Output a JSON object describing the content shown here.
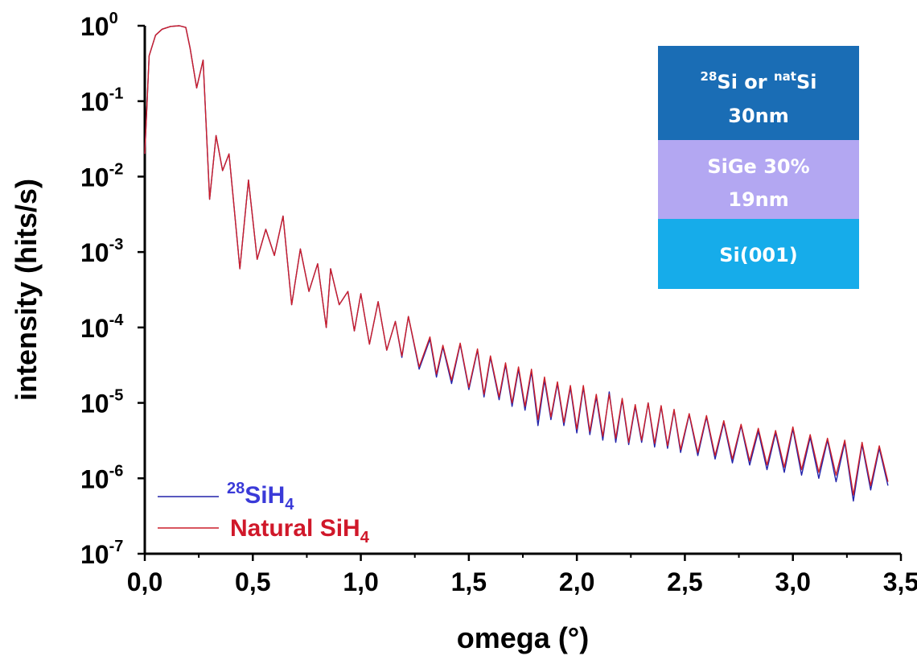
{
  "chart_data": {
    "type": "line",
    "xlabel": "omega (°)",
    "ylabel": "intensity (hits/s)",
    "xlim": [
      0,
      3.5
    ],
    "ylim_log10": [
      -7,
      0
    ],
    "y_scale": "log",
    "x_ticks": [
      {
        "v": 0.0,
        "label": "0,0"
      },
      {
        "v": 0.5,
        "label": "0,5"
      },
      {
        "v": 1.0,
        "label": "1,0"
      },
      {
        "v": 1.5,
        "label": "1,5"
      },
      {
        "v": 2.0,
        "label": "2,0"
      },
      {
        "v": 2.5,
        "label": "2,5"
      },
      {
        "v": 3.0,
        "label": "3,0"
      },
      {
        "v": 3.5,
        "label": "3,5"
      }
    ],
    "y_ticks": [
      {
        "exp": 0,
        "base": "10",
        "sup": "0"
      },
      {
        "exp": -1,
        "base": "10",
        "sup": "-1"
      },
      {
        "exp": -2,
        "base": "10",
        "sup": "-2"
      },
      {
        "exp": -3,
        "base": "10",
        "sup": "-3"
      },
      {
        "exp": -4,
        "base": "10",
        "sup": "-4"
      },
      {
        "exp": -5,
        "base": "10",
        "sup": "-5"
      },
      {
        "exp": -6,
        "base": "10",
        "sup": "-6"
      },
      {
        "exp": -7,
        "base": "10",
        "sup": "-7"
      }
    ],
    "series": [
      {
        "name_prefix_sup": "28",
        "name_main": "SiH",
        "name_sub": "4",
        "color": "#2222aa",
        "label_color": "#3a3ad8",
        "x": [
          0.0,
          0.02,
          0.05,
          0.08,
          0.12,
          0.16,
          0.19,
          0.21,
          0.24,
          0.27,
          0.3,
          0.33,
          0.36,
          0.39,
          0.41,
          0.44,
          0.48,
          0.52,
          0.56,
          0.6,
          0.64,
          0.68,
          0.72,
          0.76,
          0.8,
          0.84,
          0.86,
          0.9,
          0.94,
          0.97,
          1.0,
          1.04,
          1.08,
          1.12,
          1.16,
          1.19,
          1.22,
          1.27,
          1.32,
          1.35,
          1.38,
          1.42,
          1.46,
          1.5,
          1.54,
          1.57,
          1.6,
          1.64,
          1.67,
          1.7,
          1.73,
          1.76,
          1.79,
          1.82,
          1.85,
          1.88,
          1.91,
          1.94,
          1.97,
          2.0,
          2.03,
          2.06,
          2.09,
          2.12,
          2.15,
          2.18,
          2.21,
          2.24,
          2.27,
          2.3,
          2.33,
          2.36,
          2.39,
          2.42,
          2.45,
          2.48,
          2.52,
          2.56,
          2.6,
          2.64,
          2.68,
          2.72,
          2.76,
          2.8,
          2.84,
          2.88,
          2.92,
          2.96,
          3.0,
          3.04,
          3.08,
          3.12,
          3.16,
          3.2,
          3.24,
          3.28,
          3.32,
          3.36,
          3.4,
          3.44
        ],
        "y": [
          0.02,
          0.4,
          0.75,
          0.9,
          0.98,
          1.0,
          0.95,
          0.5,
          0.15,
          0.35,
          0.005,
          0.035,
          0.012,
          0.02,
          0.005,
          0.0006,
          0.009,
          0.0008,
          0.002,
          0.0009,
          0.003,
          0.0002,
          0.0011,
          0.0003,
          0.0007,
          0.0001,
          0.0006,
          0.0002,
          0.0003,
          9e-05,
          0.00028,
          6e-05,
          0.00022,
          5e-05,
          0.00012,
          4e-05,
          0.00014,
          2.8e-05,
          7e-05,
          2.2e-05,
          5.5e-05,
          1.8e-05,
          6e-05,
          1.5e-05,
          5e-05,
          1.2e-05,
          4e-05,
          1.1e-05,
          3.2e-05,
          9e-06,
          2.8e-05,
          8e-06,
          2.6e-05,
          5e-06,
          2e-05,
          6e-06,
          1.8e-05,
          5e-06,
          1.6e-05,
          4e-06,
          1.6e-05,
          3.8e-06,
          1.2e-05,
          3.2e-06,
          1.4e-05,
          3e-06,
          1.1e-05,
          2.8e-06,
          9e-06,
          3e-06,
          1e-05,
          2.6e-06,
          9e-06,
          2.5e-06,
          8e-06,
          2.2e-06,
          7e-06,
          2e-06,
          6.5e-06,
          1.8e-06,
          5.5e-06,
          1.6e-06,
          5e-06,
          1.5e-06,
          4.2e-06,
          1.3e-06,
          4e-06,
          1.2e-06,
          4.5e-06,
          1.1e-06,
          3.5e-06,
          1e-06,
          3.2e-06,
          9e-07,
          3e-06,
          5e-07,
          2.8e-06,
          7e-07,
          2.5e-06,
          8e-07
        ]
      },
      {
        "name_main": "Natural SiH",
        "name_sub": "4",
        "color": "#cc1f2a",
        "label_color": "#d0182a",
        "x": [
          0.0,
          0.02,
          0.05,
          0.08,
          0.12,
          0.16,
          0.19,
          0.21,
          0.24,
          0.27,
          0.3,
          0.33,
          0.36,
          0.39,
          0.41,
          0.44,
          0.48,
          0.52,
          0.56,
          0.6,
          0.64,
          0.68,
          0.72,
          0.76,
          0.8,
          0.84,
          0.86,
          0.9,
          0.94,
          0.97,
          1.0,
          1.04,
          1.08,
          1.12,
          1.16,
          1.19,
          1.22,
          1.27,
          1.32,
          1.35,
          1.38,
          1.42,
          1.46,
          1.5,
          1.54,
          1.57,
          1.6,
          1.64,
          1.67,
          1.7,
          1.73,
          1.76,
          1.79,
          1.82,
          1.85,
          1.88,
          1.91,
          1.94,
          1.97,
          2.0,
          2.03,
          2.06,
          2.09,
          2.12,
          2.15,
          2.18,
          2.21,
          2.24,
          2.27,
          2.3,
          2.33,
          2.36,
          2.39,
          2.42,
          2.45,
          2.48,
          2.52,
          2.56,
          2.6,
          2.64,
          2.68,
          2.72,
          2.76,
          2.8,
          2.84,
          2.88,
          2.92,
          2.96,
          3.0,
          3.04,
          3.08,
          3.12,
          3.16,
          3.2,
          3.24,
          3.28,
          3.32,
          3.36,
          3.4,
          3.44
        ],
        "y": [
          0.02,
          0.4,
          0.75,
          0.9,
          0.98,
          1.0,
          0.95,
          0.5,
          0.15,
          0.35,
          0.005,
          0.035,
          0.012,
          0.02,
          0.005,
          0.0006,
          0.009,
          0.0008,
          0.002,
          0.0009,
          0.003,
          0.0002,
          0.0011,
          0.0003,
          0.0007,
          0.0001,
          0.0006,
          0.0002,
          0.0003,
          9e-05,
          0.00028,
          6e-05,
          0.00022,
          5e-05,
          0.00012,
          4.2e-05,
          0.00014,
          3e-05,
          7.5e-05,
          2.4e-05,
          5.8e-05,
          2e-05,
          6.2e-05,
          1.6e-05,
          5.2e-05,
          1.3e-05,
          4.2e-05,
          1.2e-05,
          3.4e-05,
          1e-05,
          3e-05,
          9e-06,
          2.8e-05,
          6e-06,
          2.2e-05,
          6.5e-06,
          1.9e-05,
          5.5e-06,
          1.7e-05,
          4.5e-06,
          1.7e-05,
          4.2e-06,
          1.3e-05,
          3.6e-06,
          1.3e-05,
          3.4e-06,
          1.15e-05,
          3e-06,
          9.5e-06,
          3.2e-06,
          1e-05,
          2.9e-06,
          9.2e-06,
          2.7e-06,
          8.2e-06,
          2.4e-06,
          7.2e-06,
          2.2e-06,
          6.8e-06,
          2e-06,
          5.8e-06,
          1.8e-06,
          5.2e-06,
          1.7e-06,
          4.6e-06,
          1.5e-06,
          4.3e-06,
          1.4e-06,
          4.8e-06,
          1.3e-06,
          3.8e-06,
          1.2e-06,
          3.4e-06,
          1.1e-06,
          3.2e-06,
          6e-07,
          3e-06,
          8e-07,
          2.7e-06,
          9e-07
        ]
      }
    ]
  },
  "inset": {
    "layers": [
      {
        "line1_sup_a": "28",
        "line1_a": "Si or ",
        "line1_sup_b": "nat",
        "line1_b": "Si",
        "line2": "30nm",
        "color": "#1a6db5"
      },
      {
        "line1": "SiGe 30%",
        "line2": "19nm",
        "color": "#b3a7f2"
      },
      {
        "line1": "Si(001)",
        "color": "#16acea"
      }
    ]
  }
}
